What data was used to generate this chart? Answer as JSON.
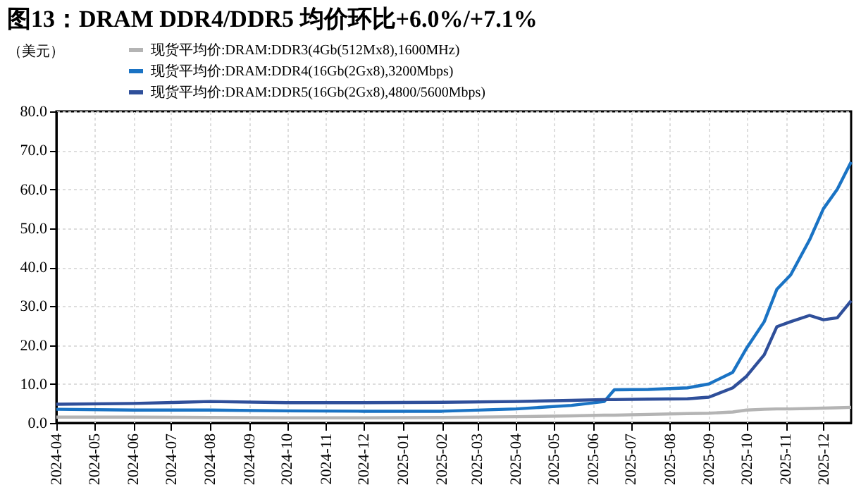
{
  "chart_data": {
    "type": "line",
    "title": "图13：DRAM DDR4/DDR5 均价环比+6.0%/+7.1%",
    "ylabel": "（美元）",
    "xlim": [
      "2024-04-01",
      "2025-12-23"
    ],
    "xticks": [
      "2024-04",
      "2024-05",
      "2024-06",
      "2024-07",
      "2024-08",
      "2024-09",
      "2024-10",
      "2024-11",
      "2024-12",
      "2025-01",
      "2025-02",
      "2025-03",
      "2025-04",
      "2025-05",
      "2025-06",
      "2025-07",
      "2025-08",
      "2025-09",
      "2025-10",
      "2025-11",
      "2025-12"
    ],
    "ylim": [
      0,
      80
    ],
    "yticks": [
      {
        "value": 0,
        "label": "0.0"
      },
      {
        "value": 10,
        "label": "10.0"
      },
      {
        "value": 20,
        "label": "20.0"
      },
      {
        "value": 30,
        "label": "30.0"
      },
      {
        "value": 40,
        "label": "40.0"
      },
      {
        "value": 50,
        "label": "50.0"
      },
      {
        "value": 60,
        "label": "60.0"
      },
      {
        "value": 70,
        "label": "70.0"
      },
      {
        "value": 80,
        "label": "80.0"
      }
    ],
    "x": [
      "2024-04-01",
      "2024-06-01",
      "2024-08-01",
      "2024-10-01",
      "2024-12-01",
      "2025-02-01",
      "2025-04-01",
      "2025-05-15",
      "2025-06-10",
      "2025-06-18",
      "2025-07-15",
      "2025-08-15",
      "2025-09-01",
      "2025-09-20",
      "2025-10-01",
      "2025-10-15",
      "2025-10-25",
      "2025-11-05",
      "2025-11-20",
      "2025-12-01",
      "2025-12-12",
      "2025-12-23"
    ],
    "series": [
      {
        "name": "现货平均价:DRAM:DDR3(4Gb(512Mx8),1600MHz)",
        "color": "#b4b4b4",
        "values": [
          1.5,
          1.5,
          1.4,
          1.3,
          1.3,
          1.4,
          1.6,
          1.8,
          2.0,
          2.0,
          2.2,
          2.4,
          2.5,
          2.8,
          3.3,
          3.5,
          3.6,
          3.6,
          3.7,
          3.8,
          3.9,
          4.0
        ]
      },
      {
        "name": "现货平均价:DRAM:DDR4(16Gb(2Gx8),3200Mbps)",
        "color": "#1a73c4",
        "values": [
          3.5,
          3.3,
          3.3,
          3.1,
          3.0,
          3.0,
          3.6,
          4.5,
          5.5,
          8.5,
          8.6,
          9.0,
          10.0,
          13.0,
          19.2,
          26.0,
          34.3,
          38.0,
          47.0,
          55.0,
          60.0,
          67.0
        ]
      },
      {
        "name": "现货平均价:DRAM:DDR5(16Gb(2Gx8),4800/5600Mbps)",
        "color": "#2f4f9a",
        "values": [
          4.8,
          5.0,
          5.5,
          5.2,
          5.2,
          5.3,
          5.5,
          5.8,
          6.0,
          6.0,
          6.1,
          6.2,
          6.6,
          9.0,
          12.0,
          17.5,
          24.7,
          26.0,
          27.6,
          26.5,
          27.0,
          31.4
        ]
      }
    ],
    "grid": true,
    "legend": "top left",
    "marker": "none",
    "line_style": "solid"
  }
}
